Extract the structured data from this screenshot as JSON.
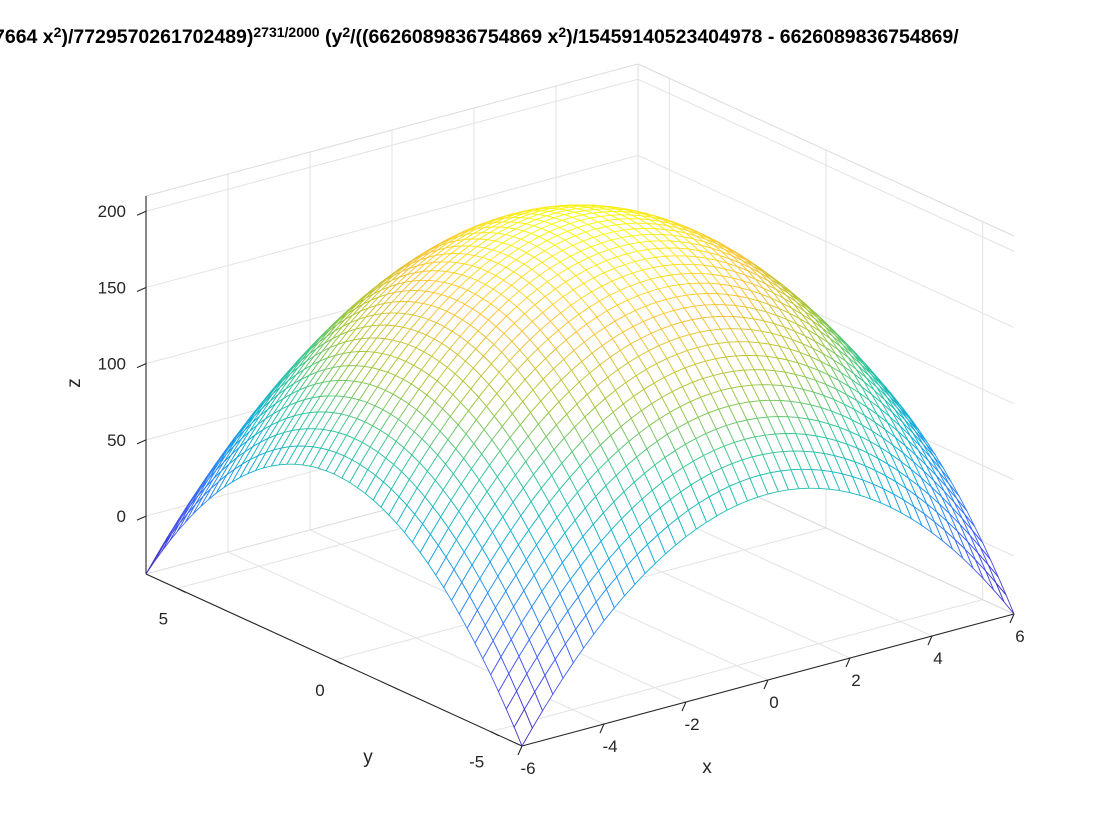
{
  "figure": {
    "title_parts": [
      {
        "t": "7664 x"
      },
      {
        "sup": "2"
      },
      {
        "t": ")/7729570261702489)"
      },
      {
        "sup": "2731/2000"
      },
      {
        "t": " (y"
      },
      {
        "sup": "2"
      },
      {
        "t": "/((6626089836754869 x"
      },
      {
        "sup": "2"
      },
      {
        "t": ")/15459140523404978 - 6626089836754869/"
      }
    ]
  },
  "chart_data": {
    "type": "surface",
    "style": "mesh",
    "colormap": "parula",
    "xlabel": "x",
    "ylabel": "y",
    "zlabel": "z",
    "xlim": [
      -6,
      6
    ],
    "ylim": [
      -6,
      6
    ],
    "zlim": [
      -38,
      210
    ],
    "x_ticks": [
      -6,
      -4,
      -2,
      0,
      2,
      4,
      6
    ],
    "y_ticks": [
      -5,
      0,
      5
    ],
    "z_ticks": [
      0,
      50,
      100,
      150,
      200
    ],
    "x_tick_labels": [
      "-6",
      "-4",
      "-2",
      "0",
      "2",
      "4",
      "6"
    ],
    "y_tick_labels": [
      "-5",
      "0",
      "5"
    ],
    "z_tick_labels": [
      "0",
      "50",
      "100",
      "150",
      "200"
    ],
    "grid": true,
    "mesh_resolution": 49,
    "surface_samples": {
      "peak": {
        "x": 0,
        "y": 0,
        "z": 207
      },
      "corner_xmin_ymin": {
        "x": -6,
        "y": -6,
        "z": -38
      },
      "corner_xmax_ymax": {
        "x": 6,
        "y": 6,
        "z": -38
      },
      "edge_xmax_y0": {
        "x": 6,
        "y": 0,
        "z": 84
      },
      "edge_ymax_x0": {
        "x": 0,
        "y": 6,
        "z": 84
      }
    }
  }
}
